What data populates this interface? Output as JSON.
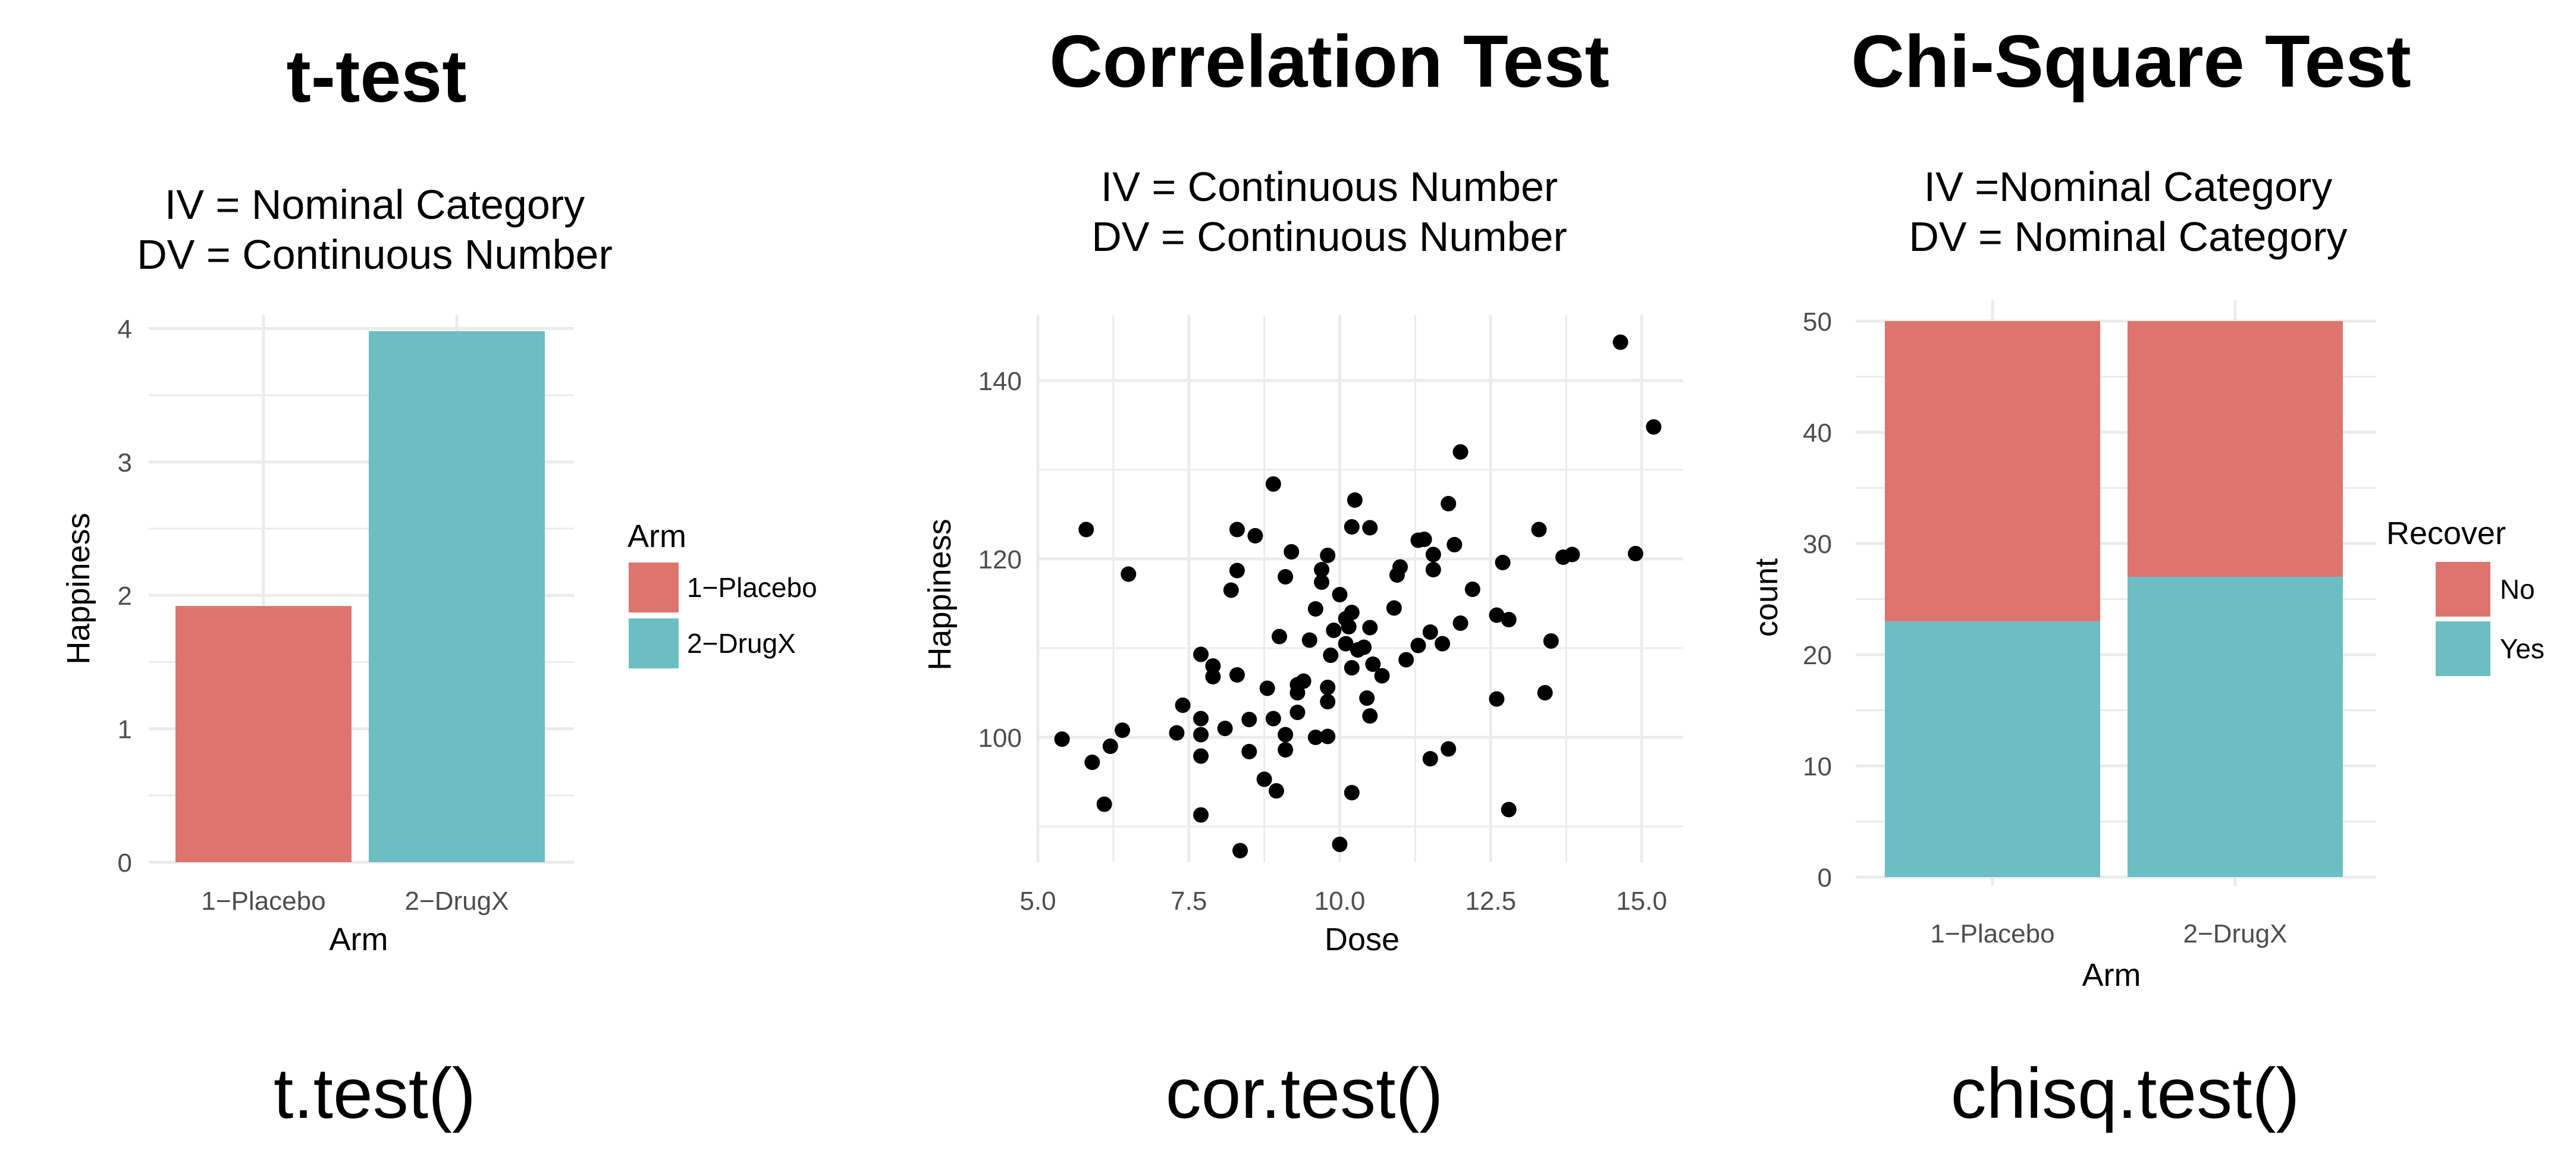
{
  "colors": {
    "red": "#dd756e",
    "teal": "#6cbec3",
    "grid": "#ebebeb",
    "axis_text": "#4d4d4d"
  },
  "panels": [
    {
      "title": "t-test",
      "subtitle_lines": [
        "IV = Nominal Category",
        "DV = Continuous Number"
      ],
      "function": "t.test()"
    },
    {
      "title": "Correlation Test",
      "subtitle_lines": [
        "IV = Continuous Number",
        "DV = Continuous Number"
      ],
      "function": "cor.test()"
    },
    {
      "title": "Chi-Square Test",
      "subtitle_lines": [
        "IV =Nominal Category",
        "DV = Nominal Category"
      ],
      "function": "chisq.test()"
    }
  ],
  "chart_data": [
    {
      "type": "bar",
      "categories": [
        "1−Placebo",
        "2−DrugX"
      ],
      "values": [
        1.92,
        3.98
      ],
      "colors": [
        "#dd756e",
        "#6cbec3"
      ],
      "xlabel": "Arm",
      "ylabel": "Happiness",
      "ylim": [
        0,
        4.1
      ],
      "yticks": [
        0,
        1,
        2,
        3,
        4
      ],
      "grid": true,
      "legend": {
        "title": "Arm",
        "entries": [
          "1−Placebo",
          "2−DrugX"
        ],
        "placement": "right"
      }
    },
    {
      "type": "scatter",
      "xlabel": "Dose",
      "ylabel": "Happiness",
      "xlim": [
        5,
        15.6
      ],
      "ylim": [
        86,
        147
      ],
      "xticks": [
        5.0,
        7.5,
        10.0,
        12.5,
        15.0
      ],
      "xtick_labels": [
        "5.0",
        "7.5",
        "10.0",
        "12.5",
        "15.0"
      ],
      "yticks": [
        100,
        120,
        140
      ],
      "grid": true,
      "points": [
        [
          5.4,
          99.8
        ],
        [
          5.8,
          123.3
        ],
        [
          5.9,
          97.2
        ],
        [
          6.1,
          92.5
        ],
        [
          6.2,
          99.0
        ],
        [
          6.4,
          100.8
        ],
        [
          6.5,
          118.3
        ],
        [
          7.3,
          100.5
        ],
        [
          7.4,
          103.6
        ],
        [
          7.7,
          109.3
        ],
        [
          7.7,
          102.1
        ],
        [
          7.7,
          100.3
        ],
        [
          7.7,
          97.9
        ],
        [
          7.7,
          91.3
        ],
        [
          7.9,
          108.0
        ],
        [
          7.9,
          106.8
        ],
        [
          8.1,
          101.0
        ],
        [
          8.2,
          116.5
        ],
        [
          8.3,
          123.3
        ],
        [
          8.3,
          118.7
        ],
        [
          8.3,
          107.0
        ],
        [
          8.35,
          87.3
        ],
        [
          8.5,
          102.0
        ],
        [
          8.5,
          98.4
        ],
        [
          8.6,
          122.6
        ],
        [
          8.75,
          95.3
        ],
        [
          8.8,
          105.5
        ],
        [
          8.9,
          128.4
        ],
        [
          8.9,
          102.1
        ],
        [
          8.95,
          94.0
        ],
        [
          9.0,
          111.3
        ],
        [
          9.1,
          118.0
        ],
        [
          9.1,
          98.6
        ],
        [
          9.1,
          100.3
        ],
        [
          9.2,
          120.8
        ],
        [
          9.3,
          105.9
        ],
        [
          9.3,
          105.0
        ],
        [
          9.3,
          102.8
        ],
        [
          9.4,
          106.3
        ],
        [
          9.5,
          110.9
        ],
        [
          9.6,
          114.4
        ],
        [
          9.6,
          100.0
        ],
        [
          9.7,
          118.8
        ],
        [
          9.7,
          117.4
        ],
        [
          9.8,
          120.4
        ],
        [
          9.8,
          105.6
        ],
        [
          9.8,
          104.0
        ],
        [
          9.8,
          100.1
        ],
        [
          9.85,
          109.2
        ],
        [
          9.9,
          112.0
        ],
        [
          10.0,
          116.0
        ],
        [
          10.0,
          88.0
        ],
        [
          10.1,
          113.3
        ],
        [
          10.1,
          110.5
        ],
        [
          10.15,
          112.4
        ],
        [
          10.2,
          123.6
        ],
        [
          10.2,
          114.0
        ],
        [
          10.2,
          107.8
        ],
        [
          10.2,
          93.8
        ],
        [
          10.25,
          126.6
        ],
        [
          10.3,
          109.8
        ],
        [
          10.4,
          110.1
        ],
        [
          10.45,
          104.4
        ],
        [
          10.5,
          123.5
        ],
        [
          10.5,
          112.3
        ],
        [
          10.5,
          102.4
        ],
        [
          10.55,
          108.2
        ],
        [
          10.7,
          106.9
        ],
        [
          10.9,
          114.5
        ],
        [
          10.95,
          118.2
        ],
        [
          11.0,
          119.1
        ],
        [
          11.1,
          108.7
        ],
        [
          11.3,
          122.1
        ],
        [
          11.3,
          110.3
        ],
        [
          11.4,
          122.2
        ],
        [
          11.5,
          111.8
        ],
        [
          11.5,
          97.6
        ],
        [
          11.55,
          120.5
        ],
        [
          11.55,
          118.8
        ],
        [
          11.7,
          110.5
        ],
        [
          11.8,
          126.2
        ],
        [
          11.8,
          98.7
        ],
        [
          11.9,
          121.6
        ],
        [
          12.0,
          132.0
        ],
        [
          12.0,
          112.8
        ],
        [
          12.2,
          116.6
        ],
        [
          12.6,
          113.7
        ],
        [
          12.6,
          104.3
        ],
        [
          12.7,
          119.6
        ],
        [
          12.8,
          113.2
        ],
        [
          12.8,
          91.9
        ],
        [
          13.3,
          123.3
        ],
        [
          13.5,
          110.8
        ],
        [
          13.4,
          105.0
        ],
        [
          13.7,
          120.2
        ],
        [
          13.85,
          120.5
        ],
        [
          14.65,
          144.3
        ],
        [
          14.9,
          120.6
        ],
        [
          15.2,
          134.8
        ]
      ]
    },
    {
      "type": "bar",
      "stacked": true,
      "categories": [
        "1−Placebo",
        "2−DrugX"
      ],
      "series": [
        {
          "name": "Yes",
          "values": [
            23,
            27
          ],
          "color": "#6cbec3"
        },
        {
          "name": "No",
          "values": [
            27,
            23
          ],
          "color": "#dd756e"
        }
      ],
      "xlabel": "Arm",
      "ylabel": "count",
      "ylim": [
        0,
        51
      ],
      "yticks": [
        0,
        10,
        20,
        30,
        40,
        50
      ],
      "grid": true,
      "legend": {
        "title": "Recover",
        "entries": [
          "No",
          "Yes"
        ],
        "placement": "right"
      }
    }
  ]
}
